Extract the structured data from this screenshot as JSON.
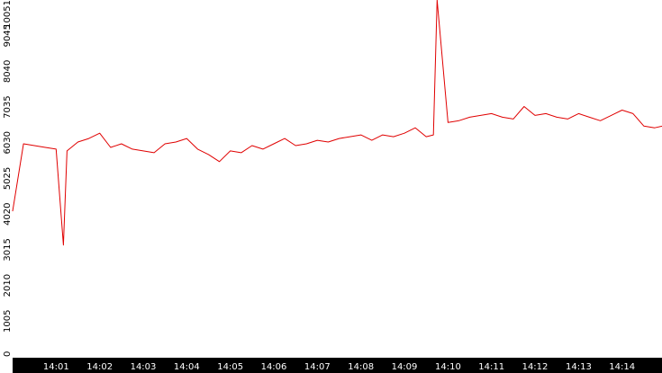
{
  "chart_data": {
    "type": "line",
    "title": "",
    "xlabel": "",
    "ylabel": "",
    "ylim": [
      0,
      10051
    ],
    "xlim": [
      "14:00:00",
      "14:14:55"
    ],
    "grid": false,
    "legend": "none",
    "y_ticks": [
      "0",
      "1005",
      "2010",
      "3015",
      "4020",
      "5025",
      "6030",
      "7035",
      "8040",
      "9045",
      "10051"
    ],
    "x_ticks": [
      "14:01",
      "14:02",
      "14:03",
      "14:04",
      "14:05",
      "14:06",
      "14:07",
      "14:08",
      "14:09",
      "14:10",
      "14:11",
      "14:12",
      "14:13",
      "14:14"
    ],
    "series": [
      {
        "color": "#e00000",
        "x": [
          "14:00:00",
          "14:00:15",
          "14:00:30",
          "14:00:45",
          "14:01:00",
          "14:01:10",
          "14:01:15",
          "14:01:30",
          "14:01:45",
          "14:02:00",
          "14:02:15",
          "14:02:30",
          "14:02:45",
          "14:03:00",
          "14:03:15",
          "14:03:30",
          "14:03:45",
          "14:04:00",
          "14:04:15",
          "14:04:30",
          "14:04:45",
          "14:05:00",
          "14:05:15",
          "14:05:30",
          "14:05:45",
          "14:06:00",
          "14:06:15",
          "14:06:30",
          "14:06:45",
          "14:07:00",
          "14:07:15",
          "14:07:30",
          "14:07:45",
          "14:08:00",
          "14:08:15",
          "14:08:30",
          "14:08:45",
          "14:09:00",
          "14:09:15",
          "14:09:30",
          "14:09:40",
          "14:09:45",
          "14:10:00",
          "14:10:15",
          "14:10:30",
          "14:10:45",
          "14:11:00",
          "14:11:15",
          "14:11:30",
          "14:11:45",
          "14:12:00",
          "14:12:15",
          "14:12:30",
          "14:12:45",
          "14:13:00",
          "14:13:15",
          "14:13:30",
          "14:13:45",
          "14:14:00",
          "14:14:15",
          "14:14:30",
          "14:14:45",
          "14:14:55"
        ],
        "values": [
          4100,
          6000,
          5950,
          5900,
          5850,
          3150,
          5800,
          6050,
          6150,
          6300,
          5900,
          6000,
          5850,
          5800,
          5750,
          6000,
          6050,
          6150,
          5850,
          5700,
          5500,
          5800,
          5750,
          5950,
          5850,
          6000,
          6150,
          5950,
          6000,
          6100,
          6050,
          6150,
          6200,
          6250,
          6100,
          6250,
          6200,
          6300,
          6450,
          6200,
          6250,
          10051,
          6600,
          6650,
          6750,
          6800,
          6850,
          6750,
          6700,
          7050,
          6800,
          6850,
          6750,
          6700,
          6850,
          6750,
          6650,
          6800,
          6950,
          6850,
          6500,
          6450,
          6500
        ]
      }
    ]
  }
}
